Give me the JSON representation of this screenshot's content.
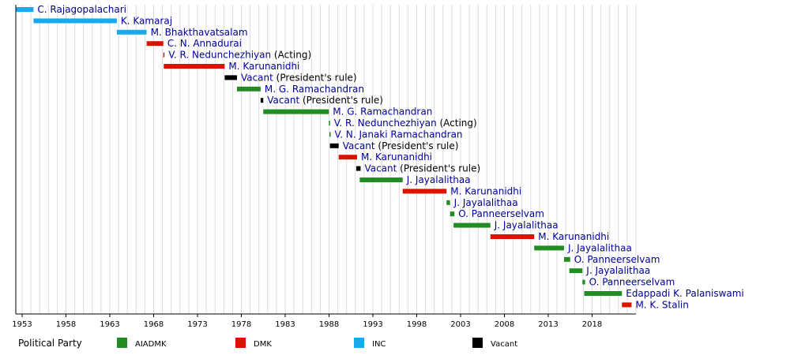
{
  "chart_data": {
    "type": "bar",
    "orientation": "horizontal-timeline",
    "xlim": [
      1953,
      2023
    ],
    "ticks": [
      "1953",
      "1958",
      "1963",
      "1968",
      "1973",
      "1978",
      "1983",
      "1988",
      "1993",
      "1998",
      "2003",
      "2008",
      "2013",
      "2018"
    ],
    "grid": true,
    "parties": [
      {
        "key": "AIADMK",
        "label": "AIADMK",
        "color": "#228b22"
      },
      {
        "key": "DMK",
        "label": "DMK",
        "color": "#dd1100"
      },
      {
        "key": "INC",
        "label": "INC",
        "color": "#19aaed"
      },
      {
        "key": "Vacant",
        "label": "Vacant",
        "color": "#000000"
      }
    ],
    "legend": {
      "title": "Political Party",
      "placement": "bottom"
    },
    "terms": [
      {
        "name": "C. Rajagopalachari",
        "note": "",
        "party": "INC",
        "start": 1952.3,
        "end": 1954.3
      },
      {
        "name": "K. Kamaraj",
        "note": "",
        "party": "INC",
        "start": 1954.3,
        "end": 1963.8
      },
      {
        "name": "M. Bhakthavatsalam",
        "note": "",
        "party": "INC",
        "start": 1963.8,
        "end": 1967.2
      },
      {
        "name": "C. N. Annadurai",
        "note": "",
        "party": "DMK",
        "start": 1967.2,
        "end": 1969.1
      },
      {
        "name": "V. R. Nedunchezhiyan",
        "note": "(Acting)",
        "party": "DMK",
        "start": 1969.1,
        "end": 1969.15
      },
      {
        "name": "M. Karunanidhi",
        "note": "",
        "party": "DMK",
        "start": 1969.15,
        "end": 1976.1
      },
      {
        "name": "Vacant",
        "note": "(President's rule)",
        "party": "Vacant",
        "start": 1976.1,
        "end": 1977.5
      },
      {
        "name": "M. G. Ramachandran",
        "note": "",
        "party": "AIADMK",
        "start": 1977.5,
        "end": 1980.2
      },
      {
        "name": "Vacant",
        "note": "(President's rule)",
        "party": "Vacant",
        "start": 1980.2,
        "end": 1980.5
      },
      {
        "name": "M. G. Ramachandran",
        "note": "",
        "party": "AIADMK",
        "start": 1980.5,
        "end": 1987.98
      },
      {
        "name": "V. R. Nedunchezhiyan",
        "note": "(Acting)",
        "party": "AIADMK",
        "start": 1987.98,
        "end": 1988.05
      },
      {
        "name": "V. N. Janaki Ramachandran",
        "note": "",
        "party": "AIADMK",
        "start": 1988.05,
        "end": 1988.1
      },
      {
        "name": "Vacant",
        "note": "(President's rule)",
        "party": "Vacant",
        "start": 1988.1,
        "end": 1989.1
      },
      {
        "name": "M. Karunanidhi",
        "note": "",
        "party": "DMK",
        "start": 1989.1,
        "end": 1991.2
      },
      {
        "name": "Vacant",
        "note": "(President's rule)",
        "party": "Vacant",
        "start": 1991.1,
        "end": 1991.6
      },
      {
        "name": "J. Jayalalithaa",
        "note": "",
        "party": "AIADMK",
        "start": 1991.5,
        "end": 1996.4
      },
      {
        "name": "M. Karunanidhi",
        "note": "",
        "party": "DMK",
        "start": 1996.4,
        "end": 2001.4
      },
      {
        "name": "J. Jayalalithaa",
        "note": "",
        "party": "AIADMK",
        "start": 2001.4,
        "end": 2001.8
      },
      {
        "name": "O. Panneerselvam",
        "note": "",
        "party": "AIADMK",
        "start": 2001.8,
        "end": 2002.3
      },
      {
        "name": "J. Jayalalithaa",
        "note": "",
        "party": "AIADMK",
        "start": 2002.2,
        "end": 2006.4
      },
      {
        "name": "M. Karunanidhi",
        "note": "",
        "party": "DMK",
        "start": 2006.4,
        "end": 2011.4
      },
      {
        "name": "J. Jayalalithaa",
        "note": "",
        "party": "AIADMK",
        "start": 2011.4,
        "end": 2014.8
      },
      {
        "name": "O. Panneerselvam",
        "note": "",
        "party": "AIADMK",
        "start": 2014.8,
        "end": 2015.5
      },
      {
        "name": "J. Jayalalithaa",
        "note": "",
        "party": "AIADMK",
        "start": 2015.4,
        "end": 2016.9
      },
      {
        "name": "O. Panneerselvam",
        "note": "",
        "party": "AIADMK",
        "start": 2016.9,
        "end": 2017.2
      },
      {
        "name": "Edappadi K. Palaniswami",
        "note": "",
        "party": "AIADMK",
        "start": 2017.1,
        "end": 2021.4
      },
      {
        "name": "M. K. Stalin",
        "note": "",
        "party": "DMK",
        "start": 2021.4,
        "end": 2022.5
      }
    ]
  }
}
